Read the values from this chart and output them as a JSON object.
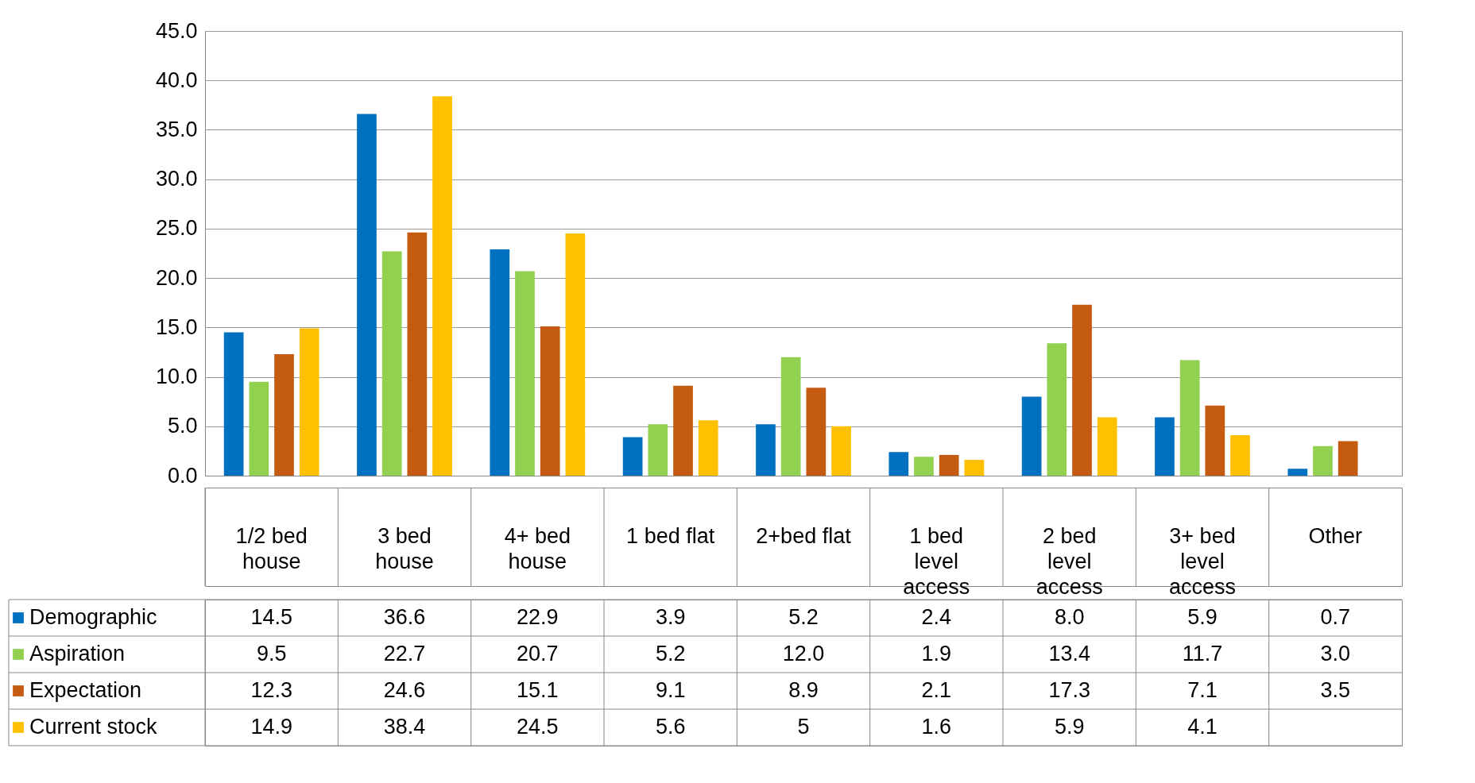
{
  "chart_data": {
    "type": "bar",
    "categories": [
      "1/2 bed house",
      "3 bed house",
      "4+ bed house",
      "1 bed flat",
      "2+bed flat",
      "1 bed level access",
      "2 bed level access",
      "3+ bed level access",
      "Other"
    ],
    "ylim": [
      0,
      45
    ],
    "yticks": [
      {
        "value": 0,
        "label": "0.0"
      },
      {
        "value": 5,
        "label": "5.0"
      },
      {
        "value": 10,
        "label": "10.0"
      },
      {
        "value": 15,
        "label": "15.0"
      },
      {
        "value": 20,
        "label": "20.0"
      },
      {
        "value": 25,
        "label": "25.0"
      },
      {
        "value": 30,
        "label": "30.0"
      },
      {
        "value": 35,
        "label": "35.0"
      },
      {
        "value": 40,
        "label": "40.0"
      },
      {
        "value": 45,
        "label": "45.0"
      }
    ],
    "grid": "y",
    "legend": "bottom left",
    "series": [
      {
        "name": "Demographic",
        "color": "#0070c0",
        "values": [
          14.5,
          36.6,
          22.9,
          3.9,
          5.2,
          2.4,
          8.0,
          5.9,
          0.7
        ],
        "value_labels": [
          "14.5",
          "36.6",
          "22.9",
          "3.9",
          "5.2",
          "2.4",
          "8.0",
          "5.9",
          "0.7"
        ]
      },
      {
        "name": "Aspiration",
        "color": "#92d050",
        "values": [
          9.5,
          22.7,
          20.7,
          5.2,
          12.0,
          1.9,
          13.4,
          11.7,
          3.0
        ],
        "value_labels": [
          "9.5",
          "22.7",
          "20.7",
          "5.2",
          "12.0",
          "1.9",
          "13.4",
          "11.7",
          "3.0"
        ]
      },
      {
        "name": "Expectation",
        "color": "#c55a11",
        "values": [
          12.3,
          24.6,
          15.1,
          9.1,
          8.9,
          2.1,
          17.3,
          7.1,
          3.5
        ],
        "value_labels": [
          "12.3",
          "24.6",
          "15.1",
          "9.1",
          "8.9",
          "2.1",
          "17.3",
          "7.1",
          "3.5"
        ]
      },
      {
        "name": "Current stock",
        "color": "#ffc000",
        "values": [
          14.9,
          38.4,
          24.5,
          5.6,
          5,
          1.6,
          5.9,
          4.1,
          null
        ],
        "value_labels": [
          "14.9",
          "38.4",
          "24.5",
          "5.6",
          "5",
          "1.6",
          "5.9",
          "4.1",
          null
        ]
      }
    ]
  }
}
